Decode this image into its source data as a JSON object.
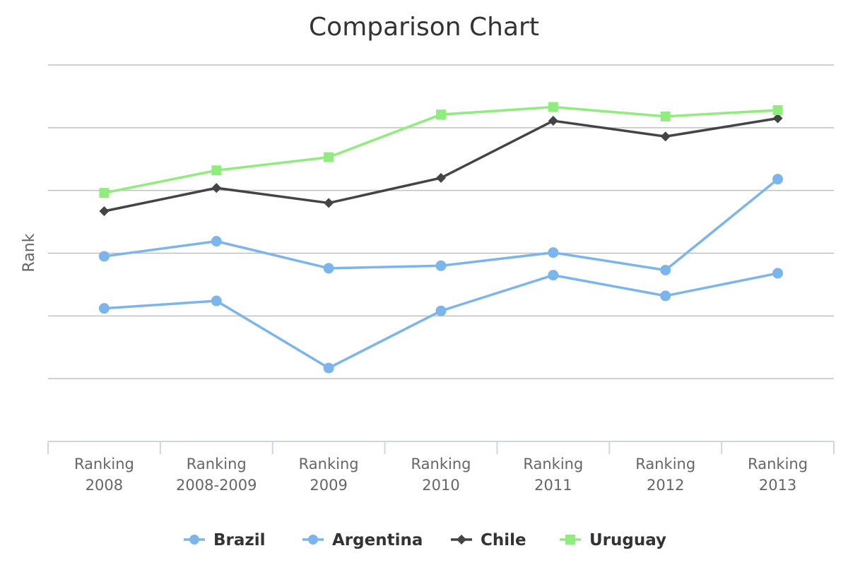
{
  "chart_data": {
    "type": "line",
    "title": "Comparison Chart",
    "xlabel": "",
    "ylabel": "Rank",
    "categories": [
      "Ranking 2008",
      "Ranking 2008-2009",
      "Ranking 2009",
      "Ranking 2010",
      "Ranking 2011",
      "Ranking 2012",
      "Ranking 2013"
    ],
    "category_lines": [
      [
        "Ranking",
        "2008"
      ],
      [
        "Ranking",
        "2008-2009"
      ],
      [
        "Ranking",
        "2009"
      ],
      [
        "Ranking",
        "2010"
      ],
      [
        "Ranking",
        "2011"
      ],
      [
        "Ranking",
        "2012"
      ],
      [
        "Ranking",
        "2013"
      ]
    ],
    "ylim": [
      0,
      6
    ],
    "y_gridlines": [
      1,
      2,
      3,
      4,
      5,
      6
    ],
    "grid": true,
    "legend_position": "bottom-center",
    "series": [
      {
        "name": "Brazil",
        "color": "#7cb5ec",
        "marker": "circle",
        "values": [
          2.12,
          2.24,
          1.17,
          2.08,
          2.65,
          2.32,
          2.68
        ]
      },
      {
        "name": "Argentina",
        "color": "#7cb5ec",
        "marker": "circle",
        "values": [
          2.95,
          3.19,
          2.76,
          2.8,
          3.01,
          2.73,
          4.18
        ]
      },
      {
        "name": "Chile",
        "color": "#434348",
        "marker": "diamond",
        "values": [
          3.67,
          4.04,
          3.8,
          4.2,
          5.11,
          4.86,
          5.15
        ]
      },
      {
        "name": "Uruguay",
        "color": "#90ed7d",
        "marker": "square",
        "values": [
          3.96,
          4.32,
          4.53,
          5.21,
          5.33,
          5.18,
          5.28
        ]
      }
    ]
  }
}
